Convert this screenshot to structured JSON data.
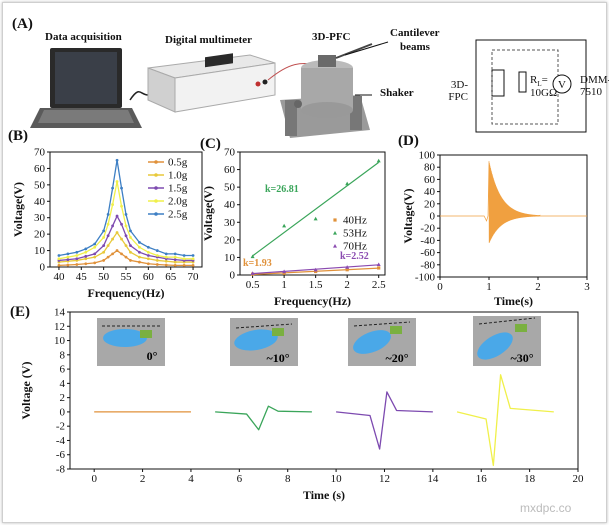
{
  "panels": {
    "A": {
      "label": "(A)",
      "texts": {
        "data_acq": "Data acquisition",
        "multimeter": "Digital multimeter",
        "pfc": "3D-PFC",
        "cantilever": "Cantilever",
        "beams": "beams",
        "shaker": "Shaker",
        "fpc1": "3D-",
        "fpc2": "FPC",
        "rl1": "R",
        "rl_sub": "L",
        "rl2": "=",
        "rl3": "10GΩ",
        "dmm1": "DMM-",
        "dmm2": "7510",
        "v": "V"
      }
    },
    "B": {
      "label": "(B)",
      "colors": [
        "#e0913a",
        "#e8c93a",
        "#7d4ab0",
        "#f0f04a",
        "#3d7fc4"
      ]
    },
    "C": {
      "label": "(C)",
      "colors": [
        "#e0913a",
        "#3aa55a",
        "#8a4ab0"
      ]
    },
    "D": {
      "label": "(D)",
      "color": "#f0a040"
    },
    "E": {
      "label": "(E)",
      "angle_labels": [
        "0°",
        "~10°",
        "~20°",
        "~30°"
      ],
      "angle_colors": [
        "#e0913a",
        "#3aa55a",
        "#8a4ab0",
        "#e8d84a"
      ],
      "colors": [
        "#e0913a",
        "#3aa55a",
        "#7d4ab0",
        "#f0f04a"
      ]
    },
    "watermark": "mxdpc.co"
  },
  "chart_data": [
    {
      "type": "line",
      "panel": "B",
      "xlabel": "Frequency(Hz)",
      "ylabel": "Voltage(V)",
      "xlim": [
        38,
        72
      ],
      "ylim": [
        0,
        70
      ],
      "xticks": [
        40,
        45,
        50,
        55,
        60,
        65,
        70
      ],
      "yticks": [
        0,
        10,
        20,
        30,
        40,
        50,
        60,
        70
      ],
      "x": [
        40,
        42,
        44,
        46,
        48,
        50,
        51,
        52,
        53,
        54,
        55,
        56,
        58,
        60,
        62,
        64,
        66,
        68,
        70
      ],
      "series": [
        {
          "name": "0.5g",
          "values": [
            1,
            1.2,
            1.5,
            2,
            2.5,
            4,
            6,
            8,
            10,
            8,
            6,
            4,
            3,
            2,
            1.5,
            1.2,
            1,
            1,
            1
          ]
        },
        {
          "name": "1.0g",
          "values": [
            3,
            3.5,
            4,
            5,
            6,
            9,
            13,
            17,
            21,
            17,
            13,
            9,
            6,
            5,
            4,
            3.5,
            3,
            3,
            3
          ]
        },
        {
          "name": "1.5g",
          "values": [
            4,
            4.5,
            5,
            6.5,
            8,
            13,
            19,
            25,
            31,
            26,
            19,
            13,
            9,
            7,
            6,
            5,
            4.5,
            4,
            4
          ]
        },
        {
          "name": "2.0g",
          "values": [
            5,
            6,
            7,
            9,
            12,
            18,
            26,
            38,
            52,
            37,
            25,
            18,
            12,
            9,
            7,
            6,
            6,
            5,
            5
          ]
        },
        {
          "name": "2.5g",
          "values": [
            7,
            8,
            9,
            11,
            14,
            22,
            32,
            48,
            65,
            48,
            32,
            22,
            15,
            12,
            10,
            8,
            8,
            7,
            7
          ]
        }
      ]
    },
    {
      "type": "scatter",
      "panel": "C",
      "xlabel": "Frequency(Hz)",
      "ylabel": "Voltage(V)",
      "xlim": [
        0.3,
        2.6
      ],
      "ylim": [
        0,
        70
      ],
      "xticks": [
        0.5,
        1.0,
        1.5,
        2.0,
        2.5
      ],
      "yticks": [
        0,
        10,
        20,
        30,
        40,
        50,
        60,
        70
      ],
      "x": [
        0.5,
        1.0,
        1.5,
        2.0,
        2.5
      ],
      "series": [
        {
          "name": "40Hz",
          "values": [
            0.5,
            1,
            2,
            3,
            4
          ],
          "slope_label": "k=1.93"
        },
        {
          "name": "53Hz",
          "values": [
            10.5,
            28,
            32,
            52,
            65
          ],
          "slope_label": "k=26.81"
        },
        {
          "name": "70Hz",
          "values": [
            1,
            2,
            3,
            4.5,
            6
          ],
          "slope_label": "k=2.52"
        }
      ]
    },
    {
      "type": "line",
      "panel": "D",
      "xlabel": "Time(s)",
      "ylabel": "Voltage(V)",
      "xlim": [
        0,
        3
      ],
      "ylim": [
        -100,
        100
      ],
      "xticks": [
        0,
        1,
        2,
        3
      ],
      "yticks": [
        100,
        80,
        60,
        40,
        20,
        0,
        -20,
        -40,
        -60,
        -80,
        -100
      ],
      "series": [
        {
          "name": "",
          "description_values": {
            "event_time": 1.0,
            "peak": 90,
            "min": -45,
            "decay_end": 2.0
          }
        }
      ]
    },
    {
      "type": "line",
      "panel": "E",
      "xlabel": "Time (s)",
      "ylabel": "Voltage (V)",
      "xlim": [
        -1,
        20
      ],
      "ylim": [
        -8,
        14
      ],
      "xticks": [
        0,
        2,
        4,
        6,
        8,
        10,
        12,
        14,
        16,
        18,
        20
      ],
      "yticks": [
        14,
        12,
        10,
        8,
        6,
        4,
        2,
        0,
        -2,
        -4,
        -6,
        -8
      ],
      "series": [
        {
          "name": "0°",
          "x": [
            0,
            4
          ],
          "values": [
            0,
            0
          ]
        },
        {
          "name": "~10°",
          "x": [
            5,
            6.3,
            6.8,
            7.2,
            7.6,
            9
          ],
          "values": [
            0,
            -0.3,
            -2.5,
            0.8,
            0.1,
            0
          ]
        },
        {
          "name": "~20°",
          "x": [
            10,
            11.4,
            11.8,
            12.1,
            12.5,
            14
          ],
          "values": [
            0,
            -0.5,
            -5.2,
            2.8,
            0.2,
            0
          ]
        },
        {
          "name": "~30°",
          "x": [
            15,
            16.2,
            16.5,
            16.8,
            17.2,
            19
          ],
          "values": [
            0,
            -1,
            -7.5,
            5.2,
            0.5,
            0
          ]
        }
      ]
    }
  ]
}
